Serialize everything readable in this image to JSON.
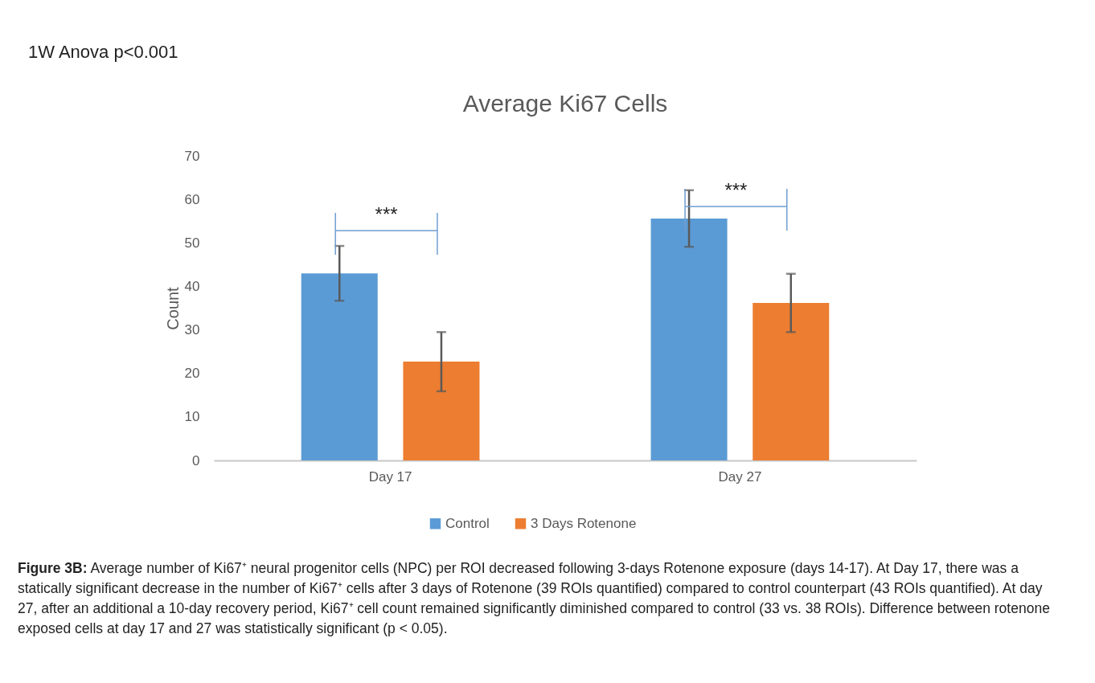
{
  "chart_data": {
    "type": "bar",
    "title": "Average Ki67 Cells",
    "ylabel": "Count",
    "categories": [
      "Day 17",
      "Day 27"
    ],
    "series": [
      {
        "name": "Control",
        "color": "#5b9bd5",
        "values": [
          43,
          55.6
        ],
        "errors": [
          6.3,
          6.5
        ]
      },
      {
        "name": "3 Days Rotenone",
        "color": "#ed7d31",
        "values": [
          22.7,
          36.2
        ],
        "errors": [
          6.8,
          6.7
        ]
      }
    ],
    "ylim": [
      0,
      70
    ],
    "yticks": [
      0,
      10,
      20,
      30,
      40,
      50,
      60,
      70
    ],
    "grid": false,
    "legend": "bottom",
    "annotations": [
      "1W Anova p<0.001",
      "***",
      "***",
      "Figure 3B:",
      "Average number of Ki67⁺ neural progenitor cells (NPC) per ROI decreased following 3-days Rotenone exposure (days 14-17). At Day 17, there was a statically significant decrease in the number of Ki67⁺ cells after 3 days of Rotenone (39 ROIs quantified) compared to control counterpart (43 ROIs quantified). At day 27, after an additional a 10-day recovery period, Ki67⁺ cell count remained significantly diminished compared to control (33 vs. 38 ROIs). Difference between rotenone exposed cells at day 17 and 27 was statistically significant (p < 0.05)."
    ]
  }
}
